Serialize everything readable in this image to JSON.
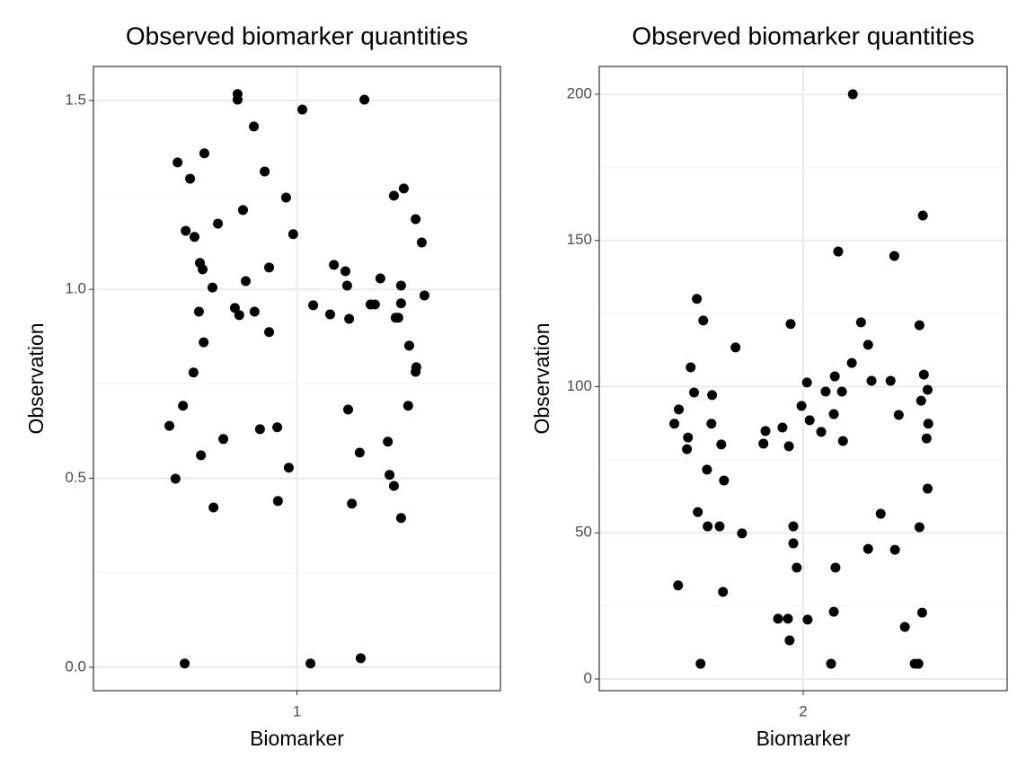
{
  "chart_data": [
    {
      "type": "scatter",
      "title": "Observed biomarker quantities",
      "x_label": "Biomarker",
      "y_label": "Observation",
      "xlim": [
        0.4,
        1.6
      ],
      "xticks": [
        1
      ],
      "ylim": [
        -0.062,
        1.59
      ],
      "yticks": [
        {
          "value": 0,
          "label": "0.0"
        },
        {
          "value": 0.5,
          "label": "0.5"
        },
        {
          "value": 1,
          "label": "1.0"
        },
        {
          "value": 1.5,
          "label": "1.5"
        }
      ],
      "y_minor_ticks": [
        0.25,
        0.75,
        1.25
      ],
      "grid": true,
      "series": [
        {
          "color": "#000000",
          "x": [
            0.648,
            0.685,
            0.727,
            0.672,
            0.698,
            0.714,
            0.722,
            0.767,
            0.751,
            0.711,
            0.725,
            0.695,
            0.664,
            0.624,
            0.642,
            0.717,
            0.783,
            0.754,
            0.669,
            0.825,
            0.825,
            0.873,
            0.905,
            0.841,
            0.849,
            0.817,
            0.83,
            0.875,
            0.918,
            0.918,
            0.891,
            0.942,
            0.944,
            0.976,
            0.968,
            0.989,
            1.016,
            1.048,
            1.04,
            1.199,
            1.098,
            1.109,
            1.143,
            1.148,
            1.154,
            1.151,
            1.162,
            1.185,
            1.188,
            1.217,
            1.23,
            1.246,
            1.268,
            1.273,
            1.286,
            1.286,
            1.315,
            1.35,
            1.368,
            1.376,
            1.307,
            1.307,
            1.291,
            1.299,
            1.331,
            1.352,
            1.35,
            1.328,
            1.307
          ],
          "y": [
            1.336,
            1.293,
            1.36,
            1.155,
            1.139,
            1.07,
            1.053,
            1.174,
            1.005,
            0.941,
            0.86,
            0.78,
            0.692,
            0.639,
            0.499,
            0.561,
            0.604,
            0.423,
            0.01,
            1.517,
            1.502,
            1.431,
            1.312,
            1.21,
            1.022,
            0.951,
            0.932,
            0.941,
            1.058,
            0.887,
            0.63,
            0.635,
            0.44,
            0.528,
            1.243,
            1.146,
            1.476,
            0.958,
            0.01,
            1.502,
            0.934,
            1.065,
            1.048,
            1.01,
            0.922,
            0.682,
            0.433,
            0.568,
            0.024,
            0.96,
            0.96,
            1.029,
            0.597,
            0.509,
            0.48,
            1.248,
            1.267,
            1.186,
            1.124,
            0.984,
            1.01,
            0.963,
            0.925,
            0.925,
            0.851,
            0.794,
            0.782,
            0.692,
            0.395
          ]
        }
      ]
    },
    {
      "type": "scatter",
      "title": "Observed biomarker quantities",
      "x_label": "Biomarker",
      "y_label": "Observation",
      "xlim": [
        1.4,
        2.6
      ],
      "xticks": [
        2
      ],
      "ylim": [
        -4.0,
        209.5
      ],
      "yticks": [
        0,
        50,
        100,
        150,
        200
      ],
      "y_minor_ticks": [
        25,
        75,
        125,
        175
      ],
      "grid": true,
      "series": [
        {
          "color": "#000000",
          "x": [
            1.687,
            1.706,
            1.669,
            1.634,
            1.621,
            1.679,
            1.732,
            1.73,
            1.661,
            1.658,
            1.717,
            1.759,
            1.767,
            1.69,
            1.719,
            1.754,
            1.82,
            1.632,
            1.764,
            1.698,
            1.801,
            1.963,
            1.995,
            2.011,
            2.019,
            1.889,
            1.883,
            1.939,
            1.958,
            1.971,
            1.971,
            1.981,
            1.926,
            1.955,
            1.96,
            2.013,
            2.082,
            2.146,
            2.103,
            2.17,
            2.143,
            2.093,
            2.114,
            2.066,
            2.09,
            2.053,
            2.117,
            2.191,
            2.201,
            2.257,
            2.281,
            2.228,
            2.191,
            2.27,
            2.095,
            2.09,
            2.299,
            2.268,
            2.352,
            2.342,
            2.355,
            2.347,
            2.366,
            2.368,
            2.363,
            2.366,
            2.342,
            2.35,
            2.328,
            2.339
          ],
          "y": [
            130.0,
            122.6,
            106.6,
            92.2,
            87.3,
            98.0,
            97.1,
            87.3,
            82.6,
            78.6,
            71.6,
            80.2,
            67.9,
            57.1,
            52.2,
            52.2,
            49.8,
            32.0,
            29.8,
            5.2,
            113.4,
            121.4,
            93.4,
            101.4,
            88.5,
            84.8,
            80.5,
            86.0,
            79.6,
            52.2,
            46.4,
            38.1,
            20.6,
            20.6,
            13.2,
            20.3,
            5.2,
            200.0,
            146.2,
            122.0,
            108.1,
            103.5,
            98.3,
            98.3,
            90.6,
            84.5,
            81.4,
            114.3,
            102.0,
            102.0,
            90.3,
            56.5,
            44.5,
            44.2,
            38.1,
            23.0,
            17.8,
            144.7,
            158.5,
            121.0,
            104.1,
            95.2,
            98.9,
            87.3,
            82.3,
            65.1,
            51.9,
            22.7,
            5.2,
            5.2
          ]
        }
      ]
    }
  ]
}
